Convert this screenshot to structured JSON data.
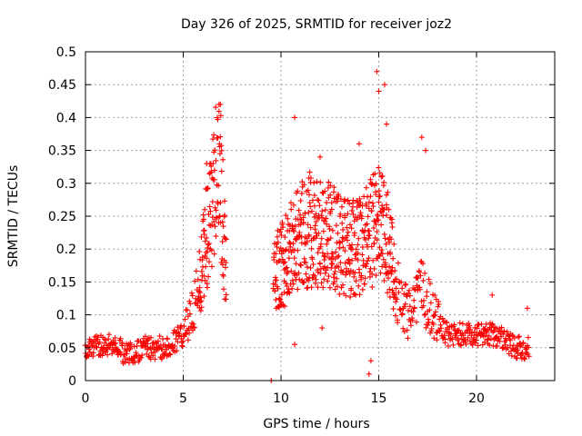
{
  "chart_data": {
    "type": "scatter",
    "title": "Day 326 of 2025, SRMTID for receiver joz2",
    "xlabel": "GPS time / hours",
    "ylabel": "SRMTID / TECUs",
    "xlim": [
      0,
      24
    ],
    "ylim": [
      0,
      0.5
    ],
    "xticks": [
      "0",
      "5",
      "10",
      "15",
      "20"
    ],
    "yticks": [
      "0",
      "0.05",
      "0.1",
      "0.15",
      "0.2",
      "0.25",
      "0.3",
      "0.35",
      "0.4",
      "0.45",
      "0.5"
    ],
    "grid": true,
    "marker": "+",
    "color": "#ff0000",
    "trend": [
      [
        0.0,
        0.04
      ],
      [
        0.5,
        0.06
      ],
      [
        1.0,
        0.05
      ],
      [
        1.5,
        0.06
      ],
      [
        2.0,
        0.04
      ],
      [
        2.5,
        0.04
      ],
      [
        3.0,
        0.05
      ],
      [
        3.5,
        0.05
      ],
      [
        4.0,
        0.05
      ],
      [
        4.5,
        0.06
      ],
      [
        5.0,
        0.07
      ],
      [
        5.5,
        0.11
      ],
      [
        6.0,
        0.18
      ],
      [
        6.3,
        0.24
      ],
      [
        6.6,
        0.3
      ],
      [
        6.9,
        0.32
      ],
      [
        7.1,
        0.2
      ],
      [
        9.5,
        0.0
      ],
      [
        9.6,
        0.17
      ],
      [
        10.0,
        0.17
      ],
      [
        10.5,
        0.2
      ],
      [
        11.0,
        0.22
      ],
      [
        11.5,
        0.23
      ],
      [
        12.0,
        0.22
      ],
      [
        12.5,
        0.22
      ],
      [
        13.0,
        0.21
      ],
      [
        13.5,
        0.2
      ],
      [
        14.0,
        0.2
      ],
      [
        14.5,
        0.22
      ],
      [
        15.0,
        0.24
      ],
      [
        15.5,
        0.21
      ],
      [
        16.0,
        0.13
      ],
      [
        16.5,
        0.1
      ],
      [
        17.0,
        0.14
      ],
      [
        17.5,
        0.12
      ],
      [
        18.0,
        0.09
      ],
      [
        18.5,
        0.07
      ],
      [
        19.0,
        0.07
      ],
      [
        19.5,
        0.07
      ],
      [
        20.0,
        0.07
      ],
      [
        20.5,
        0.07
      ],
      [
        21.0,
        0.07
      ],
      [
        21.5,
        0.06
      ],
      [
        22.0,
        0.05
      ],
      [
        22.5,
        0.05
      ],
      [
        22.7,
        0.05
      ]
    ],
    "peaks": [
      {
        "x": 6.9,
        "y": 0.42
      },
      {
        "x": 6.2,
        "y": 0.33
      },
      {
        "x": 10.7,
        "y": 0.4
      },
      {
        "x": 12.0,
        "y": 0.34
      },
      {
        "x": 14.0,
        "y": 0.36
      },
      {
        "x": 14.9,
        "y": 0.47
      },
      {
        "x": 15.0,
        "y": 0.44
      },
      {
        "x": 15.3,
        "y": 0.45
      },
      {
        "x": 15.4,
        "y": 0.39
      },
      {
        "x": 17.2,
        "y": 0.37
      },
      {
        "x": 17.4,
        "y": 0.35
      },
      {
        "x": 14.5,
        "y": 0.01
      },
      {
        "x": 14.6,
        "y": 0.03
      },
      {
        "x": 10.7,
        "y": 0.055
      },
      {
        "x": 12.1,
        "y": 0.08
      },
      {
        "x": 22.6,
        "y": 0.11
      },
      {
        "x": 20.8,
        "y": 0.13
      }
    ],
    "gap": {
      "from": 7.2,
      "to": 9.5,
      "isolated_point": {
        "x": 9.5,
        "y": 0.0
      }
    }
  }
}
